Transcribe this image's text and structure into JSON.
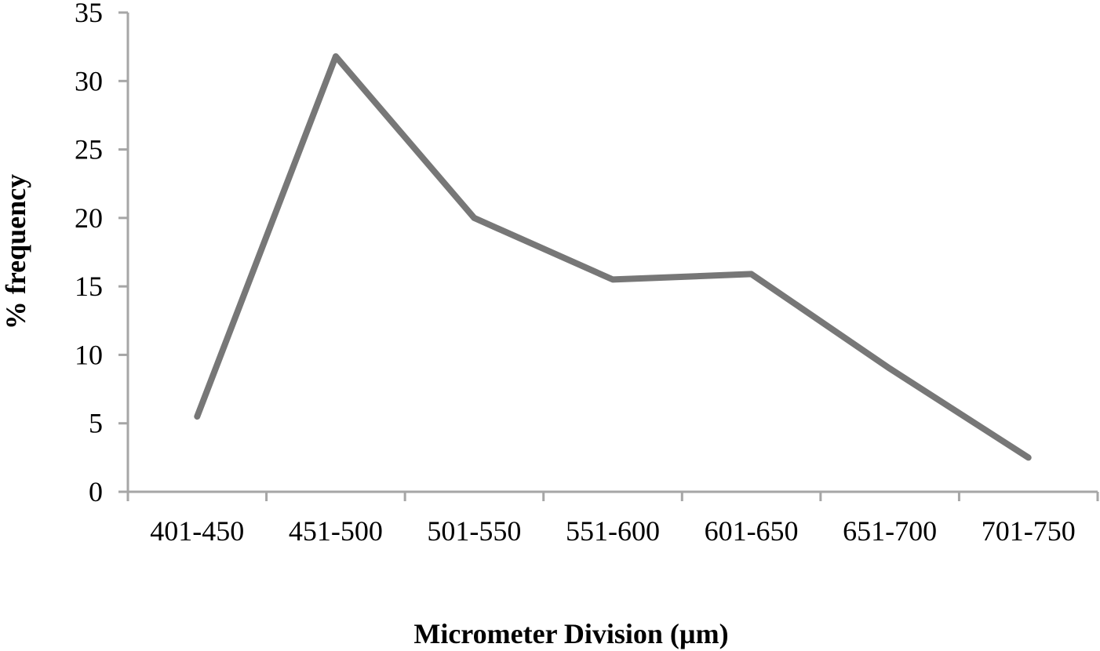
{
  "chart_data": {
    "type": "line",
    "title": "",
    "xlabel": "Micrometer Division (µm)",
    "ylabel": "% frequency",
    "categories": [
      "401-450",
      "451-500",
      "501-550",
      "551-600",
      "601-650",
      "651-700",
      "701-750"
    ],
    "series": [
      {
        "name": "% frequency",
        "values": [
          5.5,
          31.8,
          20.0,
          15.5,
          15.9,
          9.0,
          2.5
        ],
        "color": "#777777"
      }
    ],
    "ylim": [
      0,
      35
    ],
    "yticks": [
      0,
      5,
      10,
      15,
      20,
      25,
      30,
      35
    ],
    "grid": false,
    "legend": "none",
    "axis_color": "#a6a6a6"
  }
}
